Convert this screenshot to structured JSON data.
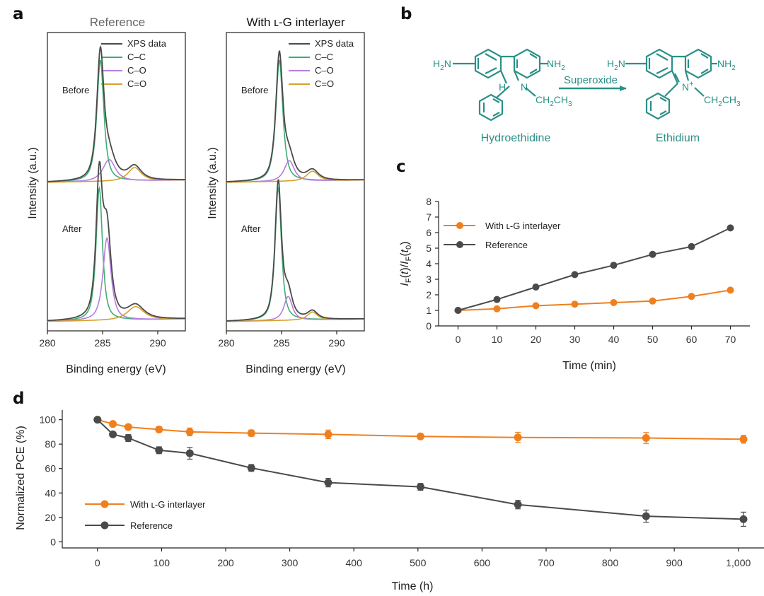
{
  "panel_labels": {
    "a": "a",
    "b": "b",
    "c": "c",
    "d": "d"
  },
  "colors": {
    "orange": "#f07f1e",
    "gray": "#4a4a4a",
    "green": "#3dae73",
    "purple": "#b77de0",
    "gold": "#d6a12a",
    "teal": "#2a9087"
  },
  "chart_data": [
    {
      "id": "a-reference",
      "type": "line",
      "title": "Reference",
      "xlabel": "Binding energy (eV)",
      "ylabel": "Intensity (a.u.)",
      "xlim": [
        280,
        292.5
      ],
      "xticks": [
        280,
        285,
        290
      ],
      "legend": [
        "XPS data",
        "C–C",
        "C–O",
        "C=O"
      ],
      "subpanels": [
        {
          "label": "Before",
          "peaks": {
            "C-C": {
              "center": 284.8,
              "height": 1.0,
              "width": 0.42
            },
            "C-O": {
              "center": 285.6,
              "height": 0.18,
              "width": 0.75
            },
            "C=O": {
              "center": 287.9,
              "height": 0.11,
              "width": 0.8
            }
          }
        },
        {
          "label": "After",
          "peaks": {
            "C-C": {
              "center": 284.7,
              "height": 1.0,
              "width": 0.38
            },
            "C-O": {
              "center": 285.4,
              "height": 0.62,
              "width": 0.48
            },
            "C=O": {
              "center": 288.0,
              "height": 0.1,
              "width": 1.0
            }
          }
        }
      ]
    },
    {
      "id": "a-interlayer",
      "type": "line",
      "title": "With ʟ-G interlayer",
      "xlabel": "Binding energy (eV)",
      "ylabel": "Intensity (a.u.)",
      "xlim": [
        280,
        292.5
      ],
      "xticks": [
        280,
        285,
        290
      ],
      "legend": [
        "XPS data",
        "C–C",
        "C–O",
        "C=O"
      ],
      "subpanels": [
        {
          "label": "Before",
          "peaks": {
            "C-C": {
              "center": 284.8,
              "height": 1.0,
              "width": 0.42
            },
            "C-O": {
              "center": 285.7,
              "height": 0.17,
              "width": 0.6
            },
            "C=O": {
              "center": 287.8,
              "height": 0.08,
              "width": 0.7
            }
          }
        },
        {
          "label": "After",
          "peaks": {
            "C-C": {
              "center": 284.7,
              "height": 1.0,
              "width": 0.38
            },
            "C-O": {
              "center": 285.6,
              "height": 0.18,
              "width": 0.5
            },
            "C=O": {
              "center": 287.8,
              "height": 0.06,
              "width": 0.6
            }
          }
        }
      ]
    },
    {
      "id": "c",
      "type": "line",
      "xlabel": "Time (min)",
      "ylabel": "IF(t)/IF(t0)",
      "ylim": [
        0,
        8
      ],
      "xlim": [
        -5,
        75
      ],
      "x": [
        0,
        10,
        20,
        30,
        40,
        50,
        60,
        70
      ],
      "xticks": [
        0,
        10,
        20,
        30,
        40,
        50,
        60,
        70
      ],
      "yticks": [
        0,
        1,
        2,
        3,
        4,
        5,
        6,
        7,
        8
      ],
      "series": [
        {
          "name": "With ʟ-G interlayer",
          "values": [
            1.0,
            1.1,
            1.3,
            1.4,
            1.5,
            1.6,
            1.9,
            2.3
          ]
        },
        {
          "name": "Reference",
          "values": [
            1.0,
            1.7,
            2.5,
            3.3,
            3.9,
            4.6,
            5.1,
            6.3
          ]
        }
      ]
    },
    {
      "id": "d",
      "type": "line",
      "xlabel": "Time (h)",
      "ylabel": "Normalized PCE (%)",
      "ylim": [
        -5,
        105
      ],
      "xlim": [
        -55,
        1040
      ],
      "xticks": [
        0,
        100,
        200,
        300,
        400,
        500,
        600,
        700,
        800,
        900,
        1000
      ],
      "xticklabels": [
        "0",
        "100",
        "200",
        "300",
        "400",
        "500",
        "600",
        "700",
        "800",
        "900",
        "1,000"
      ],
      "yticks": [
        0,
        20,
        40,
        60,
        80,
        100
      ],
      "series": [
        {
          "name": "With ʟ-G interlayer",
          "x": [
            0,
            24,
            48,
            96,
            144,
            240,
            360,
            504,
            656,
            856,
            1008
          ],
          "values": [
            100,
            96.5,
            94,
            92,
            90,
            89,
            88,
            86.3,
            85.5,
            85,
            84
          ],
          "errors": [
            1.2,
            1.5,
            1.8,
            2.2,
            3.2,
            2.5,
            3.5,
            2.0,
            4.2,
            4.5,
            3.2
          ]
        },
        {
          "name": "Reference",
          "x": [
            0,
            24,
            48,
            96,
            144,
            240,
            360,
            504,
            656,
            856,
            1008
          ],
          "values": [
            100,
            88,
            85,
            75,
            72.5,
            60.5,
            48.5,
            45,
            30.5,
            21,
            18.5
          ],
          "errors": [
            1.2,
            1.5,
            2.8,
            2.8,
            4.8,
            2.8,
            3.5,
            2.8,
            3.5,
            5.0,
            5.8
          ]
        }
      ]
    }
  ],
  "scheme": {
    "reactant_name": "Hydroethidine",
    "product_name": "Ethidium",
    "reagent": "Superoxide",
    "nh2": "NH",
    "nh2_sub": "2",
    "h2n": "H",
    "h2n_sub": "2",
    "h2n_n": "N",
    "n_atom": "N",
    "h_atom": "H",
    "plus": "+",
    "ethyl": "CH",
    "ethyl_sub1": "2",
    "ethyl_ch": "CH",
    "ethyl_sub2": "3"
  }
}
